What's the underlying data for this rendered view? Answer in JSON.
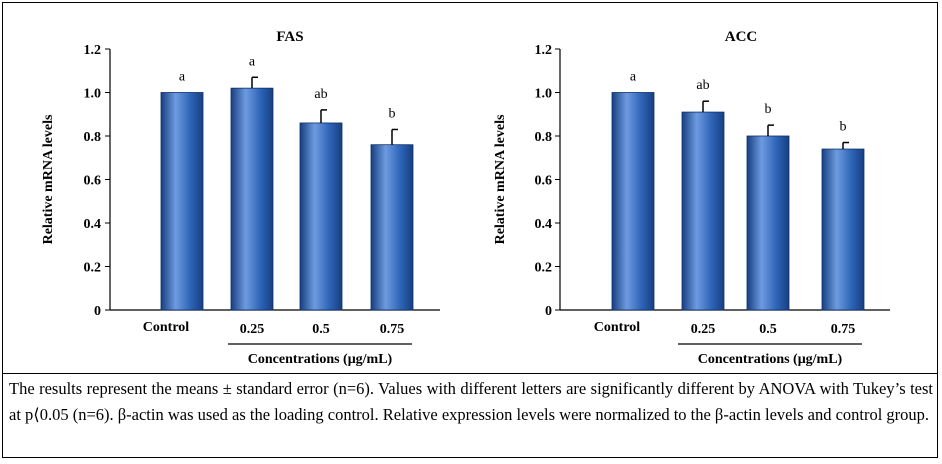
{
  "chart_data": [
    {
      "type": "bar",
      "title": "FAS",
      "ylabel": "Relative mRNA levels",
      "xlabel": "Concentrations (μg/mL)",
      "ylim": [
        0,
        1.2
      ],
      "yticks": [
        "0",
        "0.2",
        "0.4",
        "0.6",
        "0.8",
        "1.0",
        "1.2"
      ],
      "categories": [
        "Control",
        "0.25",
        "0.5",
        "0.75"
      ],
      "values": [
        1.0,
        1.02,
        0.86,
        0.76
      ],
      "errors": [
        0,
        0.05,
        0.06,
        0.07
      ],
      "significance": [
        "a",
        "a",
        "ab",
        "b"
      ]
    },
    {
      "type": "bar",
      "title": "ACC",
      "ylabel": "Relative mRNA levels",
      "xlabel": "Concentrations (μg/mL)",
      "ylim": [
        0,
        1.2
      ],
      "yticks": [
        "0",
        "0.2",
        "0.4",
        "0.6",
        "0.8",
        "1.0",
        "1.2"
      ],
      "categories": [
        "Control",
        "0.25",
        "0.5",
        "0.75"
      ],
      "values": [
        1.0,
        0.91,
        0.8,
        0.74
      ],
      "errors": [
        0,
        0.05,
        0.05,
        0.03
      ],
      "significance": [
        "a",
        "ab",
        "b",
        "b"
      ]
    }
  ],
  "caption": "The results represent the means ± standard error (n=6). Values with different letters are significantly different by ANOVA with Tukey’s test at p⟨0.05 (n=6). β-actin was used as the loading control. Relative expression levels were normalized to the β-actin levels and control group.",
  "colors": {
    "bar_light": "#6e9be0",
    "bar_mid": "#2e64b8",
    "bar_dark": "#173f82"
  }
}
